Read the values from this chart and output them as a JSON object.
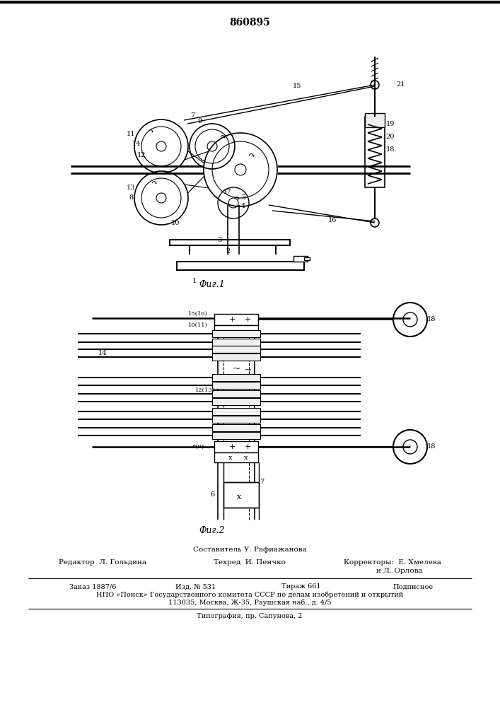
{
  "patent_number": "860895",
  "bg_color": "#ffffff",
  "line_color": "#000000",
  "fig1_caption": "Фиг.1",
  "fig2_caption": "Фиг.2",
  "footer_composer": "Составитель У. Рафиажанова",
  "footer_editor": "Редактор  Л. Гольдина",
  "footer_tech": "Техред  И. Пенчко",
  "footer_correctors": "Корректоры:  Е. Хмелева",
  "footer_correctors2": "и Л. Орлова",
  "footer_order": "Заказ 1887/6",
  "footer_izd": "Изд. № 531",
  "footer_tirazh": "Тираж 661",
  "footer_podp": "Подписное",
  "footer_npo": "НПО «Поиск» Государственного комитета СССР по делам изобретений и открытий",
  "footer_addr": "113035, Москва, Ж-35, Раушская наб., д. 4/5",
  "footer_typ": "Типография, пр. Сапунова, 2"
}
